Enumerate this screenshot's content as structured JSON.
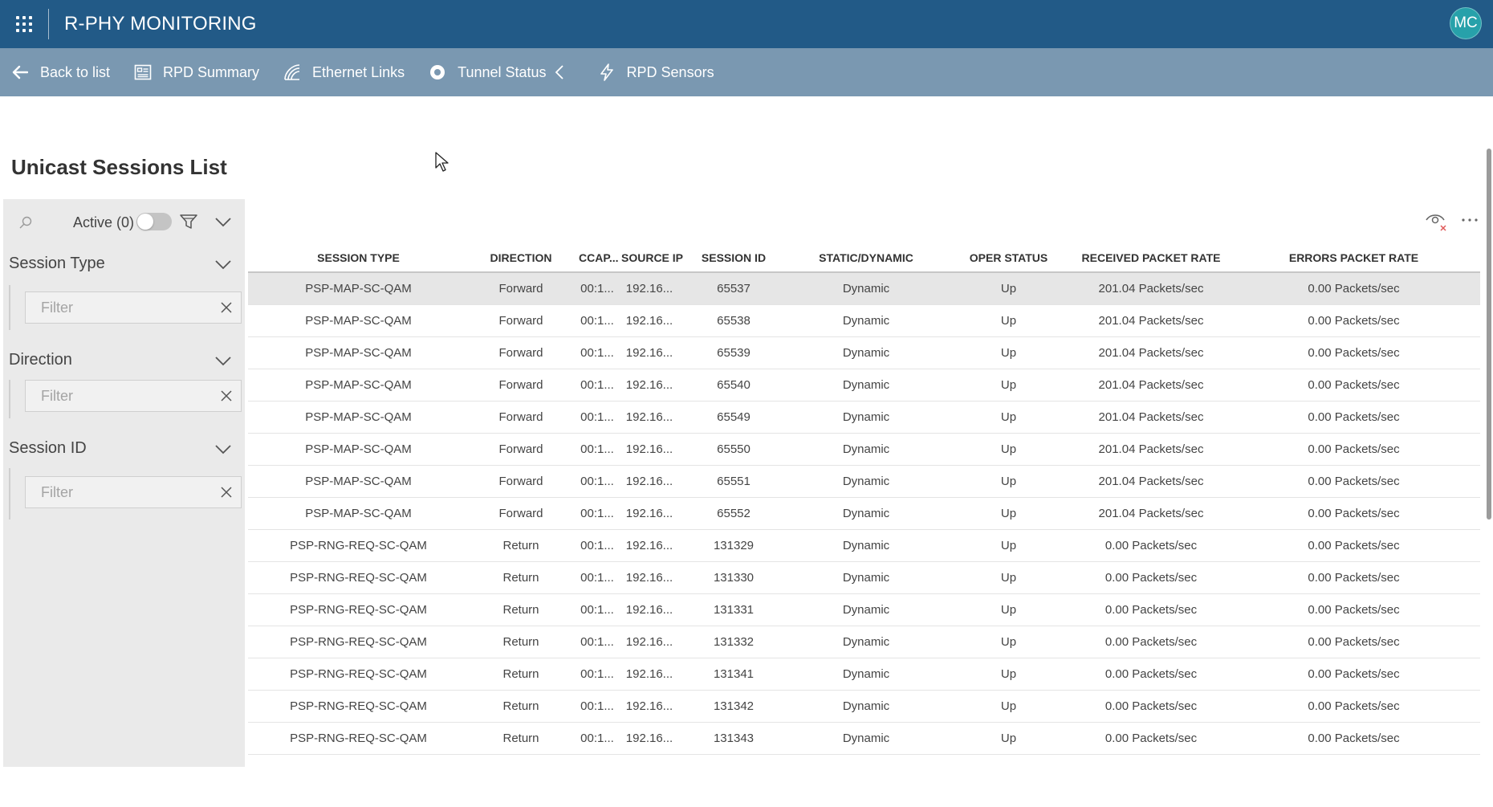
{
  "app": {
    "title": "R-PHY MONITORING",
    "user_initials": "MC"
  },
  "nav": {
    "items": [
      {
        "label": "Back to list",
        "icon": "arrow-left-icon"
      },
      {
        "label": "RPD Summary",
        "icon": "summary-icon"
      },
      {
        "label": "Ethernet Links",
        "icon": "ethernet-icon"
      },
      {
        "label": "Tunnel Status",
        "icon": "tunnel-icon"
      },
      {
        "label": "RPD Sensors",
        "icon": "lightning-icon"
      }
    ]
  },
  "page": {
    "title": "Unicast Sessions List"
  },
  "filters": {
    "active_label": "Active (0)",
    "facets": [
      {
        "title": "Session Type",
        "placeholder": "Filter"
      },
      {
        "title": "Direction",
        "placeholder": "Filter"
      },
      {
        "title": "Session ID",
        "placeholder": "Filter"
      }
    ]
  },
  "table": {
    "columns": [
      "SESSION TYPE",
      "DIRECTION",
      "CCAP...",
      "SOURCE IP",
      "SESSION ID",
      "STATIC/DYNAMIC",
      "OPER STATUS",
      "RECEIVED PACKET RATE",
      "ERRORS PACKET RATE"
    ],
    "rows": [
      [
        "PSP-MAP-SC-QAM",
        "Forward",
        "00:1...",
        "192.16...",
        "65537",
        "Dynamic",
        "Up",
        "201.04 Packets/sec",
        "0.00 Packets/sec"
      ],
      [
        "PSP-MAP-SC-QAM",
        "Forward",
        "00:1...",
        "192.16...",
        "65538",
        "Dynamic",
        "Up",
        "201.04 Packets/sec",
        "0.00 Packets/sec"
      ],
      [
        "PSP-MAP-SC-QAM",
        "Forward",
        "00:1...",
        "192.16...",
        "65539",
        "Dynamic",
        "Up",
        "201.04 Packets/sec",
        "0.00 Packets/sec"
      ],
      [
        "PSP-MAP-SC-QAM",
        "Forward",
        "00:1...",
        "192.16...",
        "65540",
        "Dynamic",
        "Up",
        "201.04 Packets/sec",
        "0.00 Packets/sec"
      ],
      [
        "PSP-MAP-SC-QAM",
        "Forward",
        "00:1...",
        "192.16...",
        "65549",
        "Dynamic",
        "Up",
        "201.04 Packets/sec",
        "0.00 Packets/sec"
      ],
      [
        "PSP-MAP-SC-QAM",
        "Forward",
        "00:1...",
        "192.16...",
        "65550",
        "Dynamic",
        "Up",
        "201.04 Packets/sec",
        "0.00 Packets/sec"
      ],
      [
        "PSP-MAP-SC-QAM",
        "Forward",
        "00:1...",
        "192.16...",
        "65551",
        "Dynamic",
        "Up",
        "201.04 Packets/sec",
        "0.00 Packets/sec"
      ],
      [
        "PSP-MAP-SC-QAM",
        "Forward",
        "00:1...",
        "192.16...",
        "65552",
        "Dynamic",
        "Up",
        "201.04 Packets/sec",
        "0.00 Packets/sec"
      ],
      [
        "PSP-RNG-REQ-SC-QAM",
        "Return",
        "00:1...",
        "192.16...",
        "131329",
        "Dynamic",
        "Up",
        "0.00 Packets/sec",
        "0.00 Packets/sec"
      ],
      [
        "PSP-RNG-REQ-SC-QAM",
        "Return",
        "00:1...",
        "192.16...",
        "131330",
        "Dynamic",
        "Up",
        "0.00 Packets/sec",
        "0.00 Packets/sec"
      ],
      [
        "PSP-RNG-REQ-SC-QAM",
        "Return",
        "00:1...",
        "192.16...",
        "131331",
        "Dynamic",
        "Up",
        "0.00 Packets/sec",
        "0.00 Packets/sec"
      ],
      [
        "PSP-RNG-REQ-SC-QAM",
        "Return",
        "00:1...",
        "192.16...",
        "131332",
        "Dynamic",
        "Up",
        "0.00 Packets/sec",
        "0.00 Packets/sec"
      ],
      [
        "PSP-RNG-REQ-SC-QAM",
        "Return",
        "00:1...",
        "192.16...",
        "131341",
        "Dynamic",
        "Up",
        "0.00 Packets/sec",
        "0.00 Packets/sec"
      ],
      [
        "PSP-RNG-REQ-SC-QAM",
        "Return",
        "00:1...",
        "192.16...",
        "131342",
        "Dynamic",
        "Up",
        "0.00 Packets/sec",
        "0.00 Packets/sec"
      ],
      [
        "PSP-RNG-REQ-SC-QAM",
        "Return",
        "00:1...",
        "192.16...",
        "131343",
        "Dynamic",
        "Up",
        "0.00 Packets/sec",
        "0.00 Packets/sec"
      ]
    ],
    "selected_row": 0
  },
  "colors": {
    "header_bg": "#225a87",
    "nav_bg": "#7a98b1",
    "avatar_bg": "#27a1aa",
    "panel_bg": "#eaeaea",
    "selected_row_bg": "#e6e6e6"
  }
}
